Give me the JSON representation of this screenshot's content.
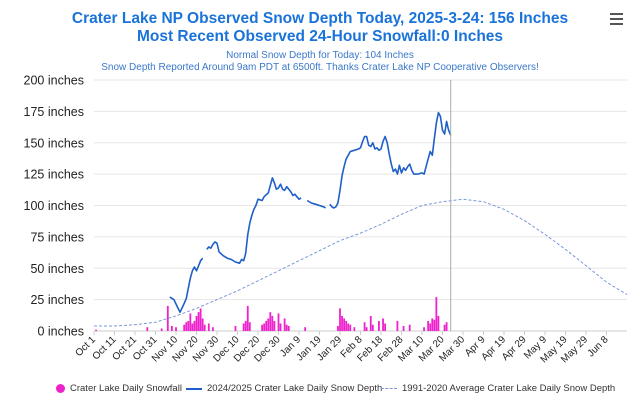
{
  "header": {
    "title_line1": "Crater Lake NP Observed Snow Depth Today, 2025-3-24: 156 Inches",
    "title_line2": "Most Recent Observed 24-Hour Snowfall:0 Inches",
    "subtitle_line1": "Normal Snow Depth for Today: 104 Inches",
    "subtitle_line2": "Snow Depth Reported Around 9am PDT at 6500ft. Thanks Crater Lake NP Cooperative Observers!"
  },
  "menu": {
    "icon": "hamburger-menu-icon"
  },
  "legend": {
    "snowfall": "Crater Lake Daily Snowfall",
    "depth": "2024/2025 Crater Lake Daily Snow Depth",
    "average": "1991-2020 Average Crater Lake Daily Snow Depth"
  },
  "colors": {
    "snowfall": "#ee22cc",
    "depth": "#1f5fc8",
    "average": "#7a98d8",
    "title": "#1a73d9",
    "today_line": "#aaaaaa"
  },
  "chart_data": {
    "type": "line",
    "title": "Crater Lake NP Observed Snow Depth Today, 2025-3-24: 156 Inches",
    "subtitle": "Most Recent Observed 24-Hour Snowfall:0 Inches",
    "xlabel": "",
    "ylabel": "",
    "x_start": "Oct 1",
    "x_end": "Jun 18",
    "ylim": [
      0,
      200
    ],
    "y_ticks": [
      0,
      25,
      50,
      75,
      100,
      125,
      150,
      175,
      200
    ],
    "y_tick_unit": "inches",
    "x_tick_labels": [
      "Oct 1",
      "Oct 11",
      "Oct 21",
      "Oct 31",
      "Nov 10",
      "Nov 20",
      "Nov 30",
      "Dec 10",
      "Dec 20",
      "Dec 30",
      "Jan 9",
      "Jan 19",
      "Jan 29",
      "Feb 8",
      "Feb 18",
      "Feb 28",
      "Mar 10",
      "Mar 20",
      "Mar 30",
      "Apr 9",
      "Apr 19",
      "Apr 29",
      "May 9",
      "May 19",
      "May 29",
      "Jun 8"
    ],
    "today_marker": "Mar 24",
    "grid": "horizontal",
    "legend_position": "bottom",
    "series": [
      {
        "name": "2024/2025 Crater Lake Daily Snow Depth",
        "kind": "line",
        "points": [
          [
            "Nov 7",
            27
          ],
          [
            "Nov 9",
            25
          ],
          [
            "Nov 11",
            18
          ],
          [
            "Nov 12",
            15
          ],
          [
            "Nov 14",
            22
          ],
          [
            "Nov 15",
            26
          ],
          [
            "Nov 16",
            34
          ],
          [
            "Nov 17",
            42
          ],
          [
            "Nov 18",
            48
          ],
          [
            "Nov 19",
            51
          ],
          [
            "Nov 20",
            48
          ],
          [
            "Nov 21",
            52
          ],
          [
            "Nov 22",
            56
          ],
          [
            "Nov 23",
            58
          ],
          null,
          [
            "Nov 25",
            65
          ],
          [
            "Nov 26",
            67
          ],
          [
            "Nov 27",
            66
          ],
          [
            "Nov 28",
            69
          ],
          [
            "Nov 29",
            71
          ],
          [
            "Nov 30",
            70
          ],
          [
            "Dec 1",
            63
          ],
          [
            "Dec 3",
            60
          ],
          [
            "Dec 5",
            58
          ],
          [
            "Dec 7",
            57
          ],
          [
            "Dec 9",
            55
          ],
          [
            "Dec 11",
            54
          ],
          [
            "Dec 12",
            57
          ],
          [
            "Dec 13",
            56
          ],
          [
            "Dec 14",
            62
          ],
          [
            "Dec 15",
            77
          ],
          [
            "Dec 16",
            86
          ],
          [
            "Dec 17",
            92
          ],
          [
            "Dec 18",
            97
          ],
          [
            "Dec 19",
            100
          ],
          [
            "Dec 20",
            105
          ],
          [
            "Dec 22",
            104
          ],
          [
            "Dec 23",
            107
          ],
          [
            "Dec 25",
            110
          ],
          [
            "Dec 26",
            116
          ],
          [
            "Dec 27",
            122
          ],
          [
            "Dec 28",
            118
          ],
          [
            "Dec 29",
            113
          ],
          [
            "Dec 30",
            114
          ],
          [
            "Dec 31",
            117
          ],
          [
            "Jan 1",
            113
          ],
          [
            "Jan 2",
            112
          ],
          [
            "Jan 3",
            115
          ],
          [
            "Jan 4",
            113
          ],
          [
            "Jan 5",
            111
          ],
          [
            "Jan 6",
            108
          ],
          [
            "Jan 7",
            109
          ],
          [
            "Jan 8",
            107
          ],
          [
            "Jan 9",
            105
          ],
          [
            "Jan 10",
            106
          ],
          null,
          [
            "Jan 13",
            104
          ],
          [
            "Jan 15",
            102
          ],
          [
            "Jan 17",
            101
          ],
          [
            "Jan 19",
            100
          ],
          [
            "Jan 21",
            99
          ],
          [
            "Jan 22",
            98
          ],
          null,
          [
            "Jan 24",
            101
          ],
          [
            "Jan 25",
            99
          ],
          [
            "Jan 26",
            98
          ],
          [
            "Jan 27",
            99
          ],
          [
            "Jan 28",
            102
          ],
          [
            "Jan 29",
            112
          ],
          [
            "Jan 30",
            124
          ],
          [
            "Jan 31",
            131
          ],
          [
            "Feb 1",
            137
          ],
          [
            "Feb 2",
            140
          ],
          [
            "Feb 3",
            143
          ],
          [
            "Feb 5",
            144
          ],
          [
            "Feb 7",
            145
          ],
          [
            "Feb 8",
            146
          ],
          [
            "Feb 9",
            151
          ],
          [
            "Feb 10",
            155
          ],
          [
            "Feb 11",
            155
          ],
          [
            "Feb 12",
            148
          ],
          [
            "Feb 13",
            147
          ],
          [
            "Feb 14",
            150
          ],
          [
            "Feb 15",
            145
          ],
          [
            "Feb 16",
            146
          ],
          [
            "Feb 17",
            144
          ],
          [
            "Feb 18",
            145
          ],
          [
            "Feb 19",
            151
          ],
          [
            "Feb 20",
            155
          ],
          [
            "Feb 21",
            150
          ],
          [
            "Feb 22",
            141
          ],
          [
            "Feb 23",
            133
          ],
          [
            "Feb 24",
            127
          ],
          [
            "Feb 25",
            129
          ],
          [
            "Feb 26",
            125
          ],
          [
            "Feb 27",
            132
          ],
          [
            "Feb 28",
            126
          ],
          [
            "Mar 1",
            130
          ],
          [
            "Mar 2",
            128
          ],
          [
            "Mar 3",
            131
          ],
          [
            "Mar 4",
            133
          ],
          [
            "Mar 5",
            128
          ],
          [
            "Mar 6",
            125
          ],
          [
            "Mar 8",
            125
          ],
          [
            "Mar 10",
            126
          ],
          [
            "Mar 11",
            125
          ],
          [
            "Mar 12",
            131
          ],
          [
            "Mar 13",
            137
          ],
          [
            "Mar 14",
            143
          ],
          [
            "Mar 15",
            140
          ],
          [
            "Mar 16",
            153
          ],
          [
            "Mar 17",
            166
          ],
          [
            "Mar 18",
            174
          ],
          [
            "Mar 19",
            171
          ],
          [
            "Mar 20",
            160
          ],
          [
            "Mar 21",
            157
          ],
          [
            "Mar 22",
            167
          ],
          [
            "Mar 23",
            160
          ],
          [
            "Mar 24",
            156
          ]
        ]
      },
      {
        "name": "1991-2020 Average Crater Lake Daily Snow Depth",
        "kind": "dashed-line",
        "points": [
          [
            "Oct 1",
            4
          ],
          [
            "Oct 11",
            4
          ],
          [
            "Oct 21",
            5
          ],
          [
            "Oct 31",
            7
          ],
          [
            "Nov 10",
            12
          ],
          [
            "Nov 20",
            18
          ],
          [
            "Nov 30",
            25
          ],
          [
            "Dec 10",
            32
          ],
          [
            "Dec 20",
            40
          ],
          [
            "Dec 30",
            48
          ],
          [
            "Jan 9",
            56
          ],
          [
            "Jan 19",
            64
          ],
          [
            "Jan 29",
            72
          ],
          [
            "Feb 8",
            78
          ],
          [
            "Feb 18",
            85
          ],
          [
            "Feb 28",
            93
          ],
          [
            "Mar 10",
            100
          ],
          [
            "Mar 20",
            103
          ],
          [
            "Mar 30",
            105
          ],
          [
            "Apr 9",
            103
          ],
          [
            "Apr 19",
            97
          ],
          [
            "Apr 29",
            88
          ],
          [
            "May 9",
            77
          ],
          [
            "May 19",
            65
          ],
          [
            "May 29",
            52
          ],
          [
            "Jun 8",
            39
          ],
          [
            "Jun 18",
            29
          ]
        ]
      },
      {
        "name": "Crater Lake Daily Snowfall",
        "kind": "bar",
        "points": [
          [
            "Oct 2",
            1
          ],
          [
            "Oct 27",
            3
          ],
          [
            "Nov 3",
            2
          ],
          [
            "Nov 6",
            20
          ],
          [
            "Nov 8",
            4
          ],
          [
            "Nov 10",
            3
          ],
          [
            "Nov 14",
            5
          ],
          [
            "Nov 15",
            7
          ],
          [
            "Nov 16",
            8
          ],
          [
            "Nov 17",
            14
          ],
          [
            "Nov 18",
            6
          ],
          [
            "Nov 19",
            8
          ],
          [
            "Nov 20",
            12
          ],
          [
            "Nov 21",
            15
          ],
          [
            "Nov 22",
            18
          ],
          [
            "Nov 23",
            10
          ],
          [
            "Nov 24",
            5
          ],
          [
            "Nov 26",
            6
          ],
          [
            "Nov 28",
            3
          ],
          [
            "Dec 9",
            4
          ],
          [
            "Dec 13",
            6
          ],
          [
            "Dec 14",
            8
          ],
          [
            "Dec 15",
            20
          ],
          [
            "Dec 16",
            7
          ],
          [
            "Dec 22",
            5
          ],
          [
            "Dec 23",
            6
          ],
          [
            "Dec 24",
            8
          ],
          [
            "Dec 25",
            10
          ],
          [
            "Dec 26",
            15
          ],
          [
            "Dec 27",
            12
          ],
          [
            "Dec 28",
            8
          ],
          [
            "Dec 30",
            14
          ],
          [
            "Dec 31",
            6
          ],
          [
            "Jan 2",
            10
          ],
          [
            "Jan 3",
            5
          ],
          [
            "Jan 4",
            4
          ],
          [
            "Jan 12",
            3
          ],
          [
            "Jan 28",
            4
          ],
          [
            "Jan 29",
            18
          ],
          [
            "Jan 30",
            12
          ],
          [
            "Jan 31",
            10
          ],
          [
            "Feb 1",
            8
          ],
          [
            "Feb 2",
            6
          ],
          [
            "Feb 3",
            5
          ],
          [
            "Feb 5",
            3
          ],
          [
            "Feb 10",
            7
          ],
          [
            "Feb 11",
            3
          ],
          [
            "Feb 13",
            12
          ],
          [
            "Feb 14",
            5
          ],
          [
            "Feb 17",
            8
          ],
          [
            "Feb 19",
            10
          ],
          [
            "Feb 20",
            6
          ],
          [
            "Feb 26",
            8
          ],
          [
            "Mar 1",
            4
          ],
          [
            "Mar 4",
            5
          ],
          [
            "Mar 11",
            3
          ],
          [
            "Mar 13",
            8
          ],
          [
            "Mar 14",
            6
          ],
          [
            "Mar 15",
            10
          ],
          [
            "Mar 16",
            9
          ],
          [
            "Mar 17",
            27
          ],
          [
            "Mar 18",
            12
          ],
          [
            "Mar 21",
            5
          ],
          [
            "Mar 22",
            7
          ]
        ]
      }
    ]
  }
}
